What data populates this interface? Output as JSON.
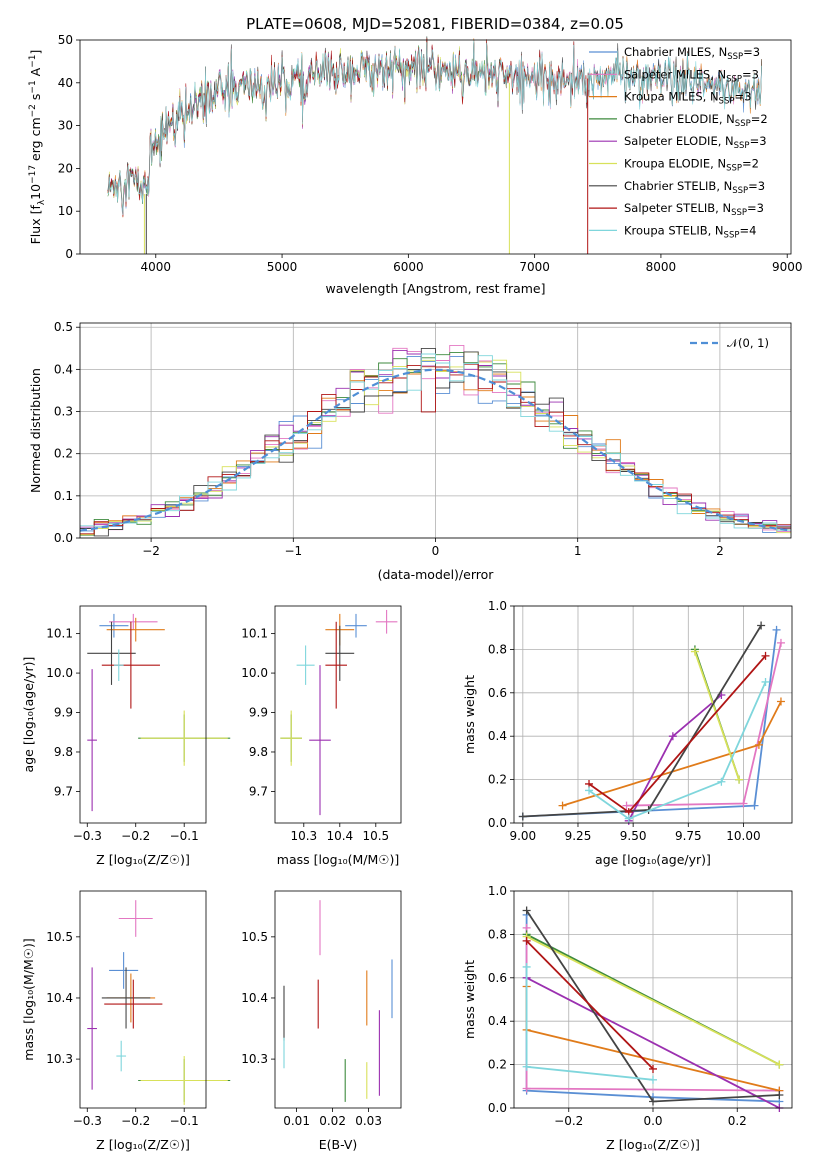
{
  "title": "PLATE=0608, MJD=52081, FIBERID=0384, z=0.05",
  "colors": {
    "Chabrier MILES": "#5a8fd4",
    "Salpeter MILES": "#e377c2",
    "Kroupa MILES": "#e07b1a",
    "Chabrier ELODIE": "#3d8a3d",
    "Salpeter ELODIE": "#9b30b0",
    "Kroupa ELODIE": "#d8e15a",
    "Chabrier STELIB": "#444444",
    "Salpeter STELIB": "#b01515",
    "Kroupa STELIB": "#7fd6dc",
    "normal_curve": "#4f8fd6"
  },
  "chart_data": [
    {
      "id": "spectrum",
      "type": "line",
      "title": "PLATE=0608, MJD=52081, FIBERID=0384, z=0.05",
      "xlabel": "wavelength [Angstrom, rest frame]",
      "ylabel_parts": [
        "Flux [f",
        "λ",
        "10",
        "−17",
        " erg cm",
        "−2",
        " s",
        "−1",
        " A",
        "−1",
        "]"
      ],
      "xlim": [
        3400,
        9030
      ],
      "ylim": [
        0,
        50
      ],
      "xticks": [
        4000,
        5000,
        6000,
        7000,
        8000,
        9000
      ],
      "yticks": [
        0,
        10,
        20,
        30,
        40,
        50
      ],
      "grid": false,
      "legend_position": "top-right",
      "legend": [
        {
          "label": "Chabrier MILES, N",
          "sub": "SSP",
          "suffix": "=3"
        },
        {
          "label": "Salpeter MILES, N",
          "sub": "SSP",
          "suffix": "=3"
        },
        {
          "label": "Kroupa MILES, N",
          "sub": "SSP",
          "suffix": "=3"
        },
        {
          "label": "Chabrier ELODIE, N",
          "sub": "SSP",
          "suffix": "=2"
        },
        {
          "label": "Salpeter ELODIE, N",
          "sub": "SSP",
          "suffix": "=3"
        },
        {
          "label": "Kroupa ELODIE, N",
          "sub": "SSP",
          "suffix": "=2"
        },
        {
          "label": "Chabrier STELIB, N",
          "sub": "SSP",
          "suffix": "=3"
        },
        {
          "label": "Salpeter STELIB, N",
          "sub": "SSP",
          "suffix": "=3"
        },
        {
          "label": "Kroupa STELIB, N",
          "sub": "SSP",
          "suffix": "=4"
        }
      ],
      "series_ranges": [
        {
          "name": "Chabrier MILES",
          "x": [
            3620,
            8800
          ]
        },
        {
          "name": "Salpeter MILES",
          "x": [
            3620,
            8800
          ]
        },
        {
          "name": "Kroupa MILES",
          "x": [
            3620,
            8800
          ]
        },
        {
          "name": "Chabrier ELODIE",
          "x": [
            3620,
            6800
          ]
        },
        {
          "name": "Salpeter ELODIE",
          "x": [
            3620,
            6800
          ]
        },
        {
          "name": "Kroupa ELODIE",
          "x": [
            3620,
            6800
          ]
        },
        {
          "name": "Chabrier STELIB",
          "x": [
            3620,
            8800
          ]
        },
        {
          "name": "Salpeter STELIB",
          "x": [
            3620,
            7420
          ]
        },
        {
          "name": "Kroupa STELIB",
          "x": [
            3620,
            8800
          ]
        }
      ],
      "continuum": {
        "x": [
          3620,
          3700,
          3800,
          3900,
          3950,
          4000,
          4100,
          4300,
          4500,
          4700,
          5000,
          5300,
          5600,
          5900,
          6200,
          6500,
          6800,
          7100,
          7400,
          7700,
          8000,
          8400,
          8800
        ],
        "y": [
          15,
          17,
          18,
          15,
          24,
          27,
          30,
          34,
          38,
          39,
          40,
          42,
          43,
          43.5,
          43,
          42,
          41.5,
          41,
          41,
          42,
          40.5,
          39,
          38
        ]
      }
    },
    {
      "id": "residuals",
      "type": "histogram",
      "xlabel": "(data-model)/error",
      "ylabel": "Normed distribution",
      "xlim": [
        -2.5,
        2.5
      ],
      "ylim": [
        0,
        0.51
      ],
      "xticks": [
        -2,
        -1,
        0,
        1,
        2
      ],
      "yticks": [
        0,
        0.1,
        0.2,
        0.3,
        0.4,
        0.5
      ],
      "ytick_labels": [
        "0.0",
        "0.1",
        "0.2",
        "0.3",
        "0.4",
        "0.5"
      ],
      "xtick_labels": [
        "−2",
        "−1",
        "0",
        "1",
        "2"
      ],
      "grid": true,
      "legend_position": "top-right",
      "legend": "𝒩(0, 1)",
      "bin_width": 0.1,
      "normal": {
        "mean": 0,
        "sd": 1
      }
    },
    {
      "id": "age-vs-Z",
      "type": "scatter-errorbar",
      "xlabel": "Z [log₁₀(Z/Z☉)]",
      "ylabel": "age  [log₁₀(age/yr)]",
      "xlim": [
        -0.315,
        -0.055
      ],
      "ylim": [
        9.62,
        10.17
      ],
      "xticks": [
        -0.3,
        -0.2,
        -0.1
      ],
      "xtick_labels": [
        "−0.3",
        "−0.2",
        "−0.1"
      ],
      "yticks": [
        9.7,
        9.8,
        9.9,
        10.0,
        10.1
      ],
      "ytick_labels": [
        "9.7",
        "9.8",
        "9.9",
        "10.0",
        "10.1"
      ],
      "points": [
        {
          "model": "Chabrier MILES",
          "x": -0.245,
          "y": 10.12,
          "xerr": 0.03,
          "yerr": 0.03
        },
        {
          "model": "Salpeter MILES",
          "x": -0.205,
          "y": 10.13,
          "xerr": 0.05,
          "yerr": 0.02
        },
        {
          "model": "Kroupa MILES",
          "x": -0.2,
          "y": 10.11,
          "xerr": 0.06,
          "yerr": 0.03
        },
        {
          "model": "Chabrier ELODIE",
          "x": -0.1,
          "y": 9.835,
          "xerr": 0.095,
          "yerr": 0.06
        },
        {
          "model": "Salpeter ELODIE",
          "x": -0.29,
          "y": 9.83,
          "xerr": 0.01,
          "yerr": 0.18
        },
        {
          "model": "Kroupa ELODIE",
          "x": -0.1,
          "y": 9.835,
          "xerr": 0.09,
          "yerr": 0.07
        },
        {
          "model": "Chabrier STELIB",
          "x": -0.25,
          "y": 10.05,
          "xerr": 0.05,
          "yerr": 0.08
        },
        {
          "model": "Salpeter STELIB",
          "x": -0.21,
          "y": 10.02,
          "xerr": 0.06,
          "yerr": 0.11
        },
        {
          "model": "Kroupa STELIB",
          "x": -0.235,
          "y": 10.02,
          "xerr": 0.01,
          "yerr": 0.04
        }
      ]
    },
    {
      "id": "age-vs-mass",
      "type": "scatter-errorbar",
      "xlabel": "mass [log₁₀(M/M☉)]",
      "xlim": [
        10.22,
        10.57
      ],
      "ylim": [
        9.62,
        10.17
      ],
      "xticks": [
        10.3,
        10.4,
        10.5
      ],
      "xtick_labels": [
        "10.3",
        "10.4",
        "10.5"
      ],
      "yticks": [
        9.7,
        9.8,
        9.9,
        10.0,
        10.1
      ],
      "ytick_labels": [
        "9.7",
        "9.8",
        "9.9",
        "10.0",
        "10.1"
      ],
      "points": [
        {
          "model": "Chabrier MILES",
          "x": 10.445,
          "y": 10.12,
          "xerr": 0.03,
          "yerr": 0.03
        },
        {
          "model": "Salpeter MILES",
          "x": 10.53,
          "y": 10.13,
          "xerr": 0.03,
          "yerr": 0.03
        },
        {
          "model": "Kroupa MILES",
          "x": 10.4,
          "y": 10.11,
          "xerr": 0.04,
          "yerr": 0.04
        },
        {
          "model": "Chabrier ELODIE",
          "x": 10.265,
          "y": 9.835,
          "xerr": 0.03,
          "yerr": 0.06
        },
        {
          "model": "Salpeter ELODIE",
          "x": 10.345,
          "y": 9.83,
          "xerr": 0.03,
          "yerr": 0.19
        },
        {
          "model": "Kroupa ELODIE",
          "x": 10.265,
          "y": 9.835,
          "xerr": 0.03,
          "yerr": 0.07
        },
        {
          "model": "Chabrier STELIB",
          "x": 10.4,
          "y": 10.05,
          "xerr": 0.04,
          "yerr": 0.07
        },
        {
          "model": "Salpeter STELIB",
          "x": 10.39,
          "y": 10.02,
          "xerr": 0.03,
          "yerr": 0.11
        },
        {
          "model": "Kroupa STELIB",
          "x": 10.305,
          "y": 10.02,
          "xerr": 0.025,
          "yerr": 0.05
        }
      ]
    },
    {
      "id": "mass-weight-vs-age",
      "type": "line",
      "xlabel": "age  [log₁₀(age/yr)]",
      "ylabel": "mass weight",
      "xlim": [
        8.96,
        10.22
      ],
      "ylim": [
        0,
        1.0
      ],
      "xticks": [
        9.0,
        9.25,
        9.5,
        9.75,
        10.0
      ],
      "xtick_labels": [
        "9.00",
        "9.25",
        "9.50",
        "9.75",
        "10.00"
      ],
      "yticks": [
        0,
        0.2,
        0.4,
        0.6,
        0.8,
        1.0
      ],
      "ytick_labels": [
        "0.0",
        "0.2",
        "0.4",
        "0.6",
        "0.8",
        "1.0"
      ],
      "grid": true,
      "series": [
        {
          "name": "Chabrier MILES",
          "x": [
            9.0,
            10.05,
            10.15
          ],
          "y": [
            0.03,
            0.08,
            0.89
          ]
        },
        {
          "name": "Salpeter MILES",
          "x": [
            9.47,
            10.0,
            10.17
          ],
          "y": [
            0.08,
            0.09,
            0.83
          ]
        },
        {
          "name": "Kroupa MILES",
          "x": [
            9.18,
            10.07,
            10.17
          ],
          "y": [
            0.08,
            0.36,
            0.56
          ]
        },
        {
          "name": "Chabrier ELODIE",
          "x": [
            9.78,
            9.98
          ],
          "y": [
            0.8,
            0.2
          ]
        },
        {
          "name": "Salpeter ELODIE",
          "x": [
            9.48,
            9.68,
            9.9
          ],
          "y": [
            0.01,
            0.4,
            0.59
          ]
        },
        {
          "name": "Kroupa ELODIE",
          "x": [
            9.78,
            9.98
          ],
          "y": [
            0.79,
            0.2
          ]
        },
        {
          "name": "Chabrier STELIB",
          "x": [
            9.0,
            9.57,
            10.08
          ],
          "y": [
            0.03,
            0.06,
            0.91
          ]
        },
        {
          "name": "Salpeter STELIB",
          "x": [
            9.3,
            9.48,
            10.1
          ],
          "y": [
            0.18,
            0.05,
            0.77
          ]
        },
        {
          "name": "Kroupa STELIB",
          "x": [
            9.3,
            9.48,
            9.9,
            10.1
          ],
          "y": [
            0.15,
            0.02,
            0.19,
            0.65
          ]
        }
      ]
    },
    {
      "id": "mass-vs-Z",
      "type": "scatter-errorbar",
      "xlabel": "Z [log₁₀(Z/Z☉)]",
      "ylabel": "mass [log₁₀(M/M☉)]",
      "xlim": [
        -0.315,
        -0.055
      ],
      "ylim": [
        10.22,
        10.575
      ],
      "xticks": [
        -0.3,
        -0.2,
        -0.1
      ],
      "xtick_labels": [
        "−0.3",
        "−0.2",
        "−0.1"
      ],
      "yticks": [
        10.3,
        10.4,
        10.5
      ],
      "ytick_labels": [
        "10.3",
        "10.4",
        "10.5"
      ],
      "points": [
        {
          "model": "Chabrier MILES",
          "x": -0.225,
          "y": 10.445,
          "xerr": 0.03,
          "yerr": 0.03
        },
        {
          "model": "Salpeter MILES",
          "x": -0.2,
          "y": 10.53,
          "xerr": 0.035,
          "yerr": 0.03
        },
        {
          "model": "Kroupa MILES",
          "x": -0.21,
          "y": 10.4,
          "xerr": 0.05,
          "yerr": 0.04
        },
        {
          "model": "Chabrier ELODIE",
          "x": -0.1,
          "y": 10.265,
          "xerr": 0.095,
          "yerr": 0.035
        },
        {
          "model": "Salpeter ELODIE",
          "x": -0.29,
          "y": 10.35,
          "xerr": 0.01,
          "yerr": 0.1
        },
        {
          "model": "Kroupa ELODIE",
          "x": -0.1,
          "y": 10.265,
          "xerr": 0.09,
          "yerr": 0.04
        },
        {
          "model": "Chabrier STELIB",
          "x": -0.22,
          "y": 10.4,
          "xerr": 0.05,
          "yerr": 0.05
        },
        {
          "model": "Salpeter STELIB",
          "x": -0.205,
          "y": 10.39,
          "xerr": 0.06,
          "yerr": 0.04
        },
        {
          "model": "Kroupa STELIB",
          "x": -0.23,
          "y": 10.305,
          "xerr": 0.01,
          "yerr": 0.025
        }
      ]
    },
    {
      "id": "mass-vs-ebv",
      "type": "scatter-errorbar",
      "xlabel": "E(B-V)",
      "xlim": [
        0.004,
        0.039
      ],
      "ylim": [
        10.22,
        10.575
      ],
      "xticks": [
        0.01,
        0.02,
        0.03
      ],
      "xtick_labels": [
        "0.01",
        "0.02",
        "0.03"
      ],
      "yticks": [
        10.3,
        10.4,
        10.5
      ],
      "ytick_labels": [
        "10.3",
        "10.4",
        "10.5"
      ],
      "points": [
        {
          "model": "Chabrier MILES",
          "x": 0.0365,
          "y": 10.415,
          "xerr": 0,
          "yerr": 0.048
        },
        {
          "model": "Salpeter MILES",
          "x": 0.0165,
          "y": 10.515,
          "xerr": 0,
          "yerr": 0.045
        },
        {
          "model": "Kroupa MILES",
          "x": 0.0295,
          "y": 10.4,
          "xerr": 0,
          "yerr": 0.045
        },
        {
          "model": "Chabrier ELODIE",
          "x": 0.0235,
          "y": 10.265,
          "xerr": 0,
          "yerr": 0.035
        },
        {
          "model": "Salpeter ELODIE",
          "x": 0.033,
          "y": 10.31,
          "xerr": 0,
          "yerr": 0.07
        },
        {
          "model": "Kroupa ELODIE",
          "x": 0.0295,
          "y": 10.265,
          "xerr": 0,
          "yerr": 0.03
        },
        {
          "model": "Chabrier STELIB",
          "x": 0.0065,
          "y": 10.375,
          "xerr": 0,
          "yerr": 0.045
        },
        {
          "model": "Salpeter STELIB",
          "x": 0.016,
          "y": 10.39,
          "xerr": 0,
          "yerr": 0.04
        },
        {
          "model": "Kroupa STELIB",
          "x": 0.0065,
          "y": 10.31,
          "xerr": 0,
          "yerr": 0.025
        }
      ]
    },
    {
      "id": "mass-weight-vs-Z",
      "type": "line",
      "xlabel": "Z [log₁₀(Z/Z☉)]",
      "ylabel": "mass weight",
      "xlim": [
        -0.33,
        0.33
      ],
      "ylim": [
        0,
        1.0
      ],
      "xticks": [
        -0.2,
        0.0,
        0.2
      ],
      "xtick_labels": [
        "−0.2",
        "0.0",
        "0.2"
      ],
      "yticks": [
        0,
        0.2,
        0.4,
        0.6,
        0.8,
        1.0
      ],
      "ytick_labels": [
        "0.0",
        "0.2",
        "0.4",
        "0.6",
        "0.8",
        "1.0"
      ],
      "grid": true,
      "series": [
        {
          "name": "Chabrier MILES",
          "x": [
            -0.3,
            -0.3,
            0.0,
            0.3
          ],
          "y": [
            0.89,
            0.08,
            0.05,
            0.03
          ]
        },
        {
          "name": "Salpeter MILES",
          "x": [
            -0.3,
            -0.3,
            0.3
          ],
          "y": [
            0.83,
            0.09,
            0.08
          ]
        },
        {
          "name": "Kroupa MILES",
          "x": [
            -0.3,
            -0.3,
            0.3
          ],
          "y": [
            0.56,
            0.36,
            0.08
          ]
        },
        {
          "name": "Chabrier ELODIE",
          "x": [
            -0.3,
            0.3
          ],
          "y": [
            0.8,
            0.2
          ]
        },
        {
          "name": "Salpeter ELODIE",
          "x": [
            -0.3,
            0.3
          ],
          "y": [
            0.6,
            0.0
          ]
        },
        {
          "name": "Kroupa ELODIE",
          "x": [
            -0.3,
            0.3
          ],
          "y": [
            0.79,
            0.2
          ]
        },
        {
          "name": "Chabrier STELIB",
          "x": [
            -0.3,
            0.0,
            0.3
          ],
          "y": [
            0.91,
            0.03,
            0.06
          ]
        },
        {
          "name": "Salpeter STELIB",
          "x": [
            -0.3,
            0.0
          ],
          "y": [
            0.77,
            0.18
          ]
        },
        {
          "name": "Kroupa STELIB",
          "x": [
            -0.3,
            -0.3,
            0.0
          ],
          "y": [
            0.65,
            0.19,
            0.13
          ]
        }
      ]
    }
  ]
}
